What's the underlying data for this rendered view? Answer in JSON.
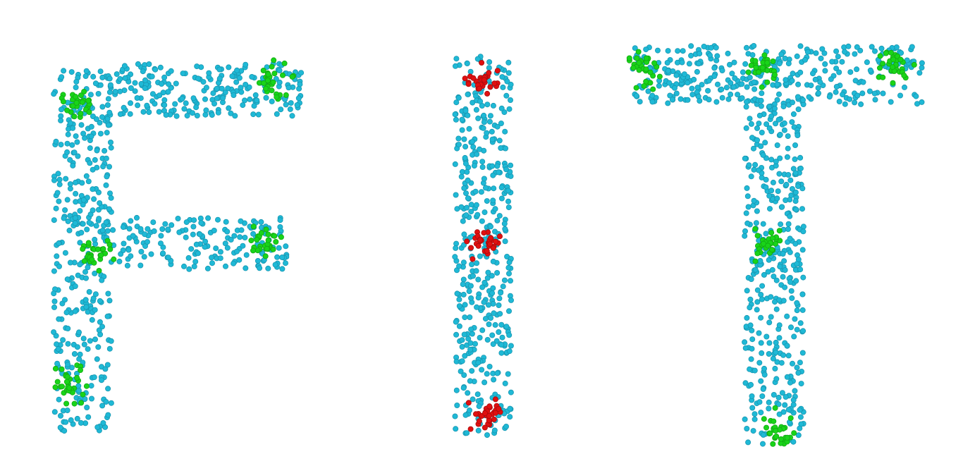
{
  "colors": {
    "background": "#ffffff",
    "default_point": "#1fb9d6",
    "default_point_stroke": "#1996b0",
    "green_cluster": "#19d419",
    "green_cluster_stroke": "#12a812",
    "red_cluster": "#e01010",
    "red_cluster_stroke": "#a80c0c"
  },
  "letters": [
    "F",
    "I",
    "T"
  ],
  "clusters": [
    {
      "letter": "F",
      "color": "green"
    },
    {
      "letter": "F",
      "color": "green"
    },
    {
      "letter": "F",
      "color": "green"
    },
    {
      "letter": "F",
      "color": "green"
    },
    {
      "letter": "F",
      "color": "green"
    },
    {
      "letter": "I",
      "color": "red"
    },
    {
      "letter": "I",
      "color": "red"
    },
    {
      "letter": "I",
      "color": "red"
    },
    {
      "letter": "T",
      "color": "green"
    },
    {
      "letter": "T",
      "color": "green"
    },
    {
      "letter": "T",
      "color": "green"
    },
    {
      "letter": "T",
      "color": "green"
    },
    {
      "letter": "T",
      "color": "green"
    }
  ]
}
